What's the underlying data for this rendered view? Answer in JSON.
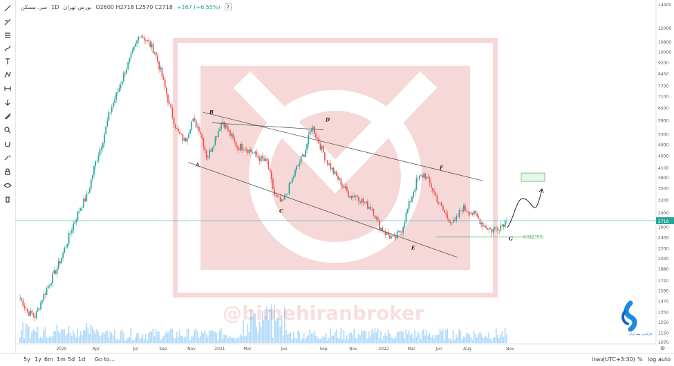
{
  "header": {
    "symbol": "سر. مسکن",
    "interval": "1D",
    "exchange": "بورس تهران",
    "ohlc": "O2600  H2718  L2570  C2718",
    "change": "+167 (+6.55%)",
    "count_badge": "2"
  },
  "toolbar_icons": [
    "crosshair-icon",
    "trend-line-icon",
    "fib-icon",
    "brush-icon",
    "text-icon",
    "pattern-icon",
    "measure-icon",
    "arrow-icon",
    "ruler-icon",
    "zoom-icon",
    "magnet-icon",
    "lock-draw-icon",
    "lock-icon",
    "eye-icon",
    "trash-icon"
  ],
  "bottom": {
    "periods": [
      "5y",
      "1y",
      "6m",
      "1m",
      "5d",
      "1d"
    ],
    "goto": "Go to...",
    "timezone": "(UTC+3:30)",
    "tz_prefix": "inav",
    "percent": "%",
    "log": "log",
    "auto": "auto"
  },
  "watermark": "@bimehiranbroker",
  "logo_text": "کارگزاری بیمه ایران",
  "colors": {
    "up": "#26a69a",
    "down": "#ef5350",
    "price_line": "#26a69a",
    "fib": "#4caf50",
    "target_fill": "#e8f5e9"
  },
  "chart_data": {
    "type": "candlestick",
    "x_ticks": [
      "2020",
      "Apr",
      "Jul",
      "Sep",
      "Nov",
      "2021",
      "Mar",
      "Jun",
      "Sep",
      "Nov",
      "2022",
      "Mar",
      "Jun",
      "Aug",
      "Nov"
    ],
    "y_ticks": [
      14400,
      12000,
      10800,
      10000,
      9200,
      8450,
      7700,
      7100,
      6500,
      5900,
      5300,
      4900,
      4500,
      4100,
      3800,
      3500,
      3200,
      2900,
      2600,
      2400,
      2200,
      2040,
      1880,
      1720,
      1590,
      1470,
      1350,
      1250,
      1150,
      1070
    ],
    "y_scale": "log",
    "last_price": 2718,
    "last_price_label": "2718",
    "fib_label": "0.5(2399)",
    "fib_value": 2399,
    "wave_labels": [
      {
        "label": "A",
        "value": 4350
      },
      {
        "label": "B",
        "value": 6000
      },
      {
        "label": "C",
        "value": 3050
      },
      {
        "label": "D",
        "value": 5650
      },
      {
        "label": "E",
        "value": 2300
      },
      {
        "label": "F",
        "value": 3900
      },
      {
        "label": "G",
        "value": 2460
      }
    ],
    "close_path": [
      1500,
      1350,
      1300,
      1500,
      1700,
      1900,
      2200,
      2600,
      3000,
      3300,
      4200,
      5000,
      6300,
      7300,
      8600,
      9800,
      11500,
      10800,
      10000,
      8200,
      6500,
      5400,
      5000,
      5900,
      5500,
      4400,
      5100,
      5900,
      5300,
      4800,
      4800,
      4600,
      4400,
      4250,
      3300,
      3100,
      3550,
      4100,
      4600,
      5650,
      4900,
      4300,
      3900,
      3600,
      3300,
      3300,
      3100,
      3000,
      2600,
      2450,
      2350,
      2550,
      3100,
      3700,
      3900,
      3500,
      3100,
      2800,
      2650,
      3000,
      2950,
      2800,
      2620,
      2520,
      2600,
      2718
    ]
  }
}
